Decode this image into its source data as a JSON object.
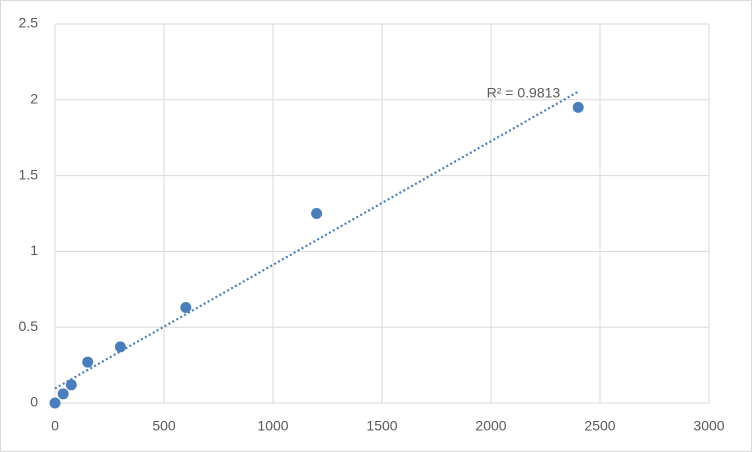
{
  "chart_data": {
    "type": "scatter",
    "x": [
      0,
      37.5,
      75,
      150,
      300,
      600,
      1200,
      2400
    ],
    "values": [
      0,
      0.06,
      0.12,
      0.27,
      0.37,
      0.63,
      1.25,
      1.95
    ],
    "color": "#4a7ebb",
    "xlim": [
      0,
      3000
    ],
    "xticks": [
      0,
      500,
      1000,
      1500,
      2000,
      2500,
      3000
    ],
    "ylim": [
      0,
      2.5
    ],
    "yticks": [
      0,
      0.5,
      1,
      1.5,
      2,
      2.5
    ],
    "grid": true,
    "trendline": "linear",
    "annotation": "R² = 0.9813"
  }
}
